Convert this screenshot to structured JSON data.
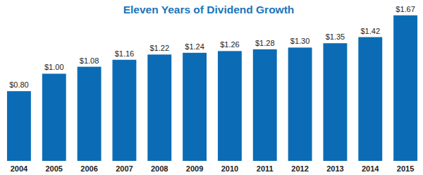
{
  "chart_data": {
    "type": "bar",
    "title": "Eleven Years of Dividend Growth",
    "categories": [
      "2004",
      "2005",
      "2006",
      "2007",
      "2008",
      "2009",
      "2010",
      "2011",
      "2012",
      "2013",
      "2014",
      "2015"
    ],
    "values": [
      0.8,
      1.0,
      1.08,
      1.16,
      1.22,
      1.24,
      1.26,
      1.28,
      1.3,
      1.35,
      1.42,
      1.67
    ],
    "value_labels": [
      "$0.80",
      "$1.00",
      "$1.08",
      "$1.16",
      "$1.22",
      "$1.24",
      "$1.26",
      "$1.28",
      "$1.30",
      "$1.35",
      "$1.42",
      "$1.67"
    ],
    "color": "#0b6cb5",
    "ylim": [
      0,
      1.7
    ],
    "data_labels": true,
    "tick_labels": "x",
    "grid": false
  }
}
